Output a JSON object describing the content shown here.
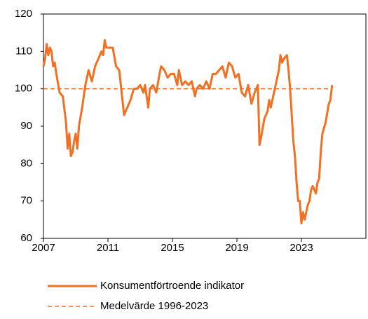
{
  "chart_data": {
    "type": "line",
    "xlim": [
      2007,
      2027
    ],
    "xticks": [
      2007,
      2011,
      2015,
      2019,
      2023
    ],
    "ylim": [
      60,
      120
    ],
    "yticks": [
      60,
      70,
      80,
      90,
      100,
      110,
      120
    ],
    "series": [
      {
        "name": "Konsumentförtroende indikator",
        "color": "#f36f21",
        "style": "solid",
        "x": [
          2007.0,
          2007.1,
          2007.2,
          2007.3,
          2007.4,
          2007.5,
          2007.6,
          2007.7,
          2007.8,
          2008.0,
          2008.2,
          2008.4,
          2008.5,
          2008.6,
          2008.7,
          2008.8,
          2008.9,
          2009.0,
          2009.1,
          2009.2,
          2009.4,
          2009.6,
          2009.8,
          2010.0,
          2010.2,
          2010.4,
          2010.6,
          2010.7,
          2010.8,
          2010.9,
          2011.1,
          2011.3,
          2011.5,
          2011.7,
          2011.9,
          2012.0,
          2012.2,
          2012.4,
          2012.6,
          2012.8,
          2013.0,
          2013.2,
          2013.3,
          2013.5,
          2013.6,
          2013.8,
          2014.0,
          2014.2,
          2014.3,
          2014.5,
          2014.7,
          2014.9,
          2015.1,
          2015.3,
          2015.4,
          2015.6,
          2015.8,
          2016.0,
          2016.2,
          2016.4,
          2016.5,
          2016.7,
          2016.9,
          2017.1,
          2017.3,
          2017.5,
          2017.7,
          2017.9,
          2018.1,
          2018.3,
          2018.5,
          2018.7,
          2018.9,
          2019.1,
          2019.3,
          2019.5,
          2019.7,
          2019.9,
          2020.1,
          2020.3,
          2020.4,
          2020.5,
          2020.7,
          2020.9,
          2021.0,
          2021.1,
          2021.3,
          2021.5,
          2021.6,
          2021.7,
          2021.8,
          2021.9,
          2022.1,
          2022.2,
          2022.3,
          2022.5,
          2022.6,
          2022.7,
          2022.8,
          2022.9,
          2023.0,
          2023.1,
          2023.2,
          2023.4,
          2023.5,
          2023.6,
          2023.7,
          2023.9,
          2024.0,
          2024.1,
          2024.2,
          2024.3,
          2024.5,
          2024.7,
          2024.8,
          2024.9
        ],
        "values": [
          106,
          108,
          112,
          109,
          111,
          110,
          106,
          107,
          104,
          99,
          98,
          91,
          84,
          88,
          82,
          83,
          86,
          88,
          84,
          90,
          95,
          101,
          105,
          102,
          106,
          108,
          110,
          109,
          113,
          111,
          111,
          111,
          106,
          105,
          97,
          93,
          95,
          97,
          100,
          100,
          101,
          99,
          101,
          95,
          100,
          101,
          99,
          104,
          106,
          105,
          103,
          104,
          104,
          101,
          105,
          101,
          102,
          101,
          102,
          98,
          100,
          101,
          100,
          102,
          100,
          104,
          104,
          105,
          106,
          103,
          107,
          106,
          103,
          104,
          99,
          98,
          101,
          96,
          99,
          101,
          85,
          87,
          92,
          94,
          97,
          95,
          99,
          103,
          105,
          109,
          107,
          108,
          109,
          105,
          100,
          86,
          82,
          75,
          70,
          70,
          64,
          67,
          65,
          69,
          70,
          73,
          74,
          72,
          75,
          76,
          83,
          88,
          91,
          96,
          97,
          101
        ]
      },
      {
        "name": "Medelvärde 1996-2023",
        "color": "#f36f21",
        "style": "dashed",
        "x": [
          2007,
          2024.8
        ],
        "values": [
          100,
          100
        ]
      }
    ]
  }
}
